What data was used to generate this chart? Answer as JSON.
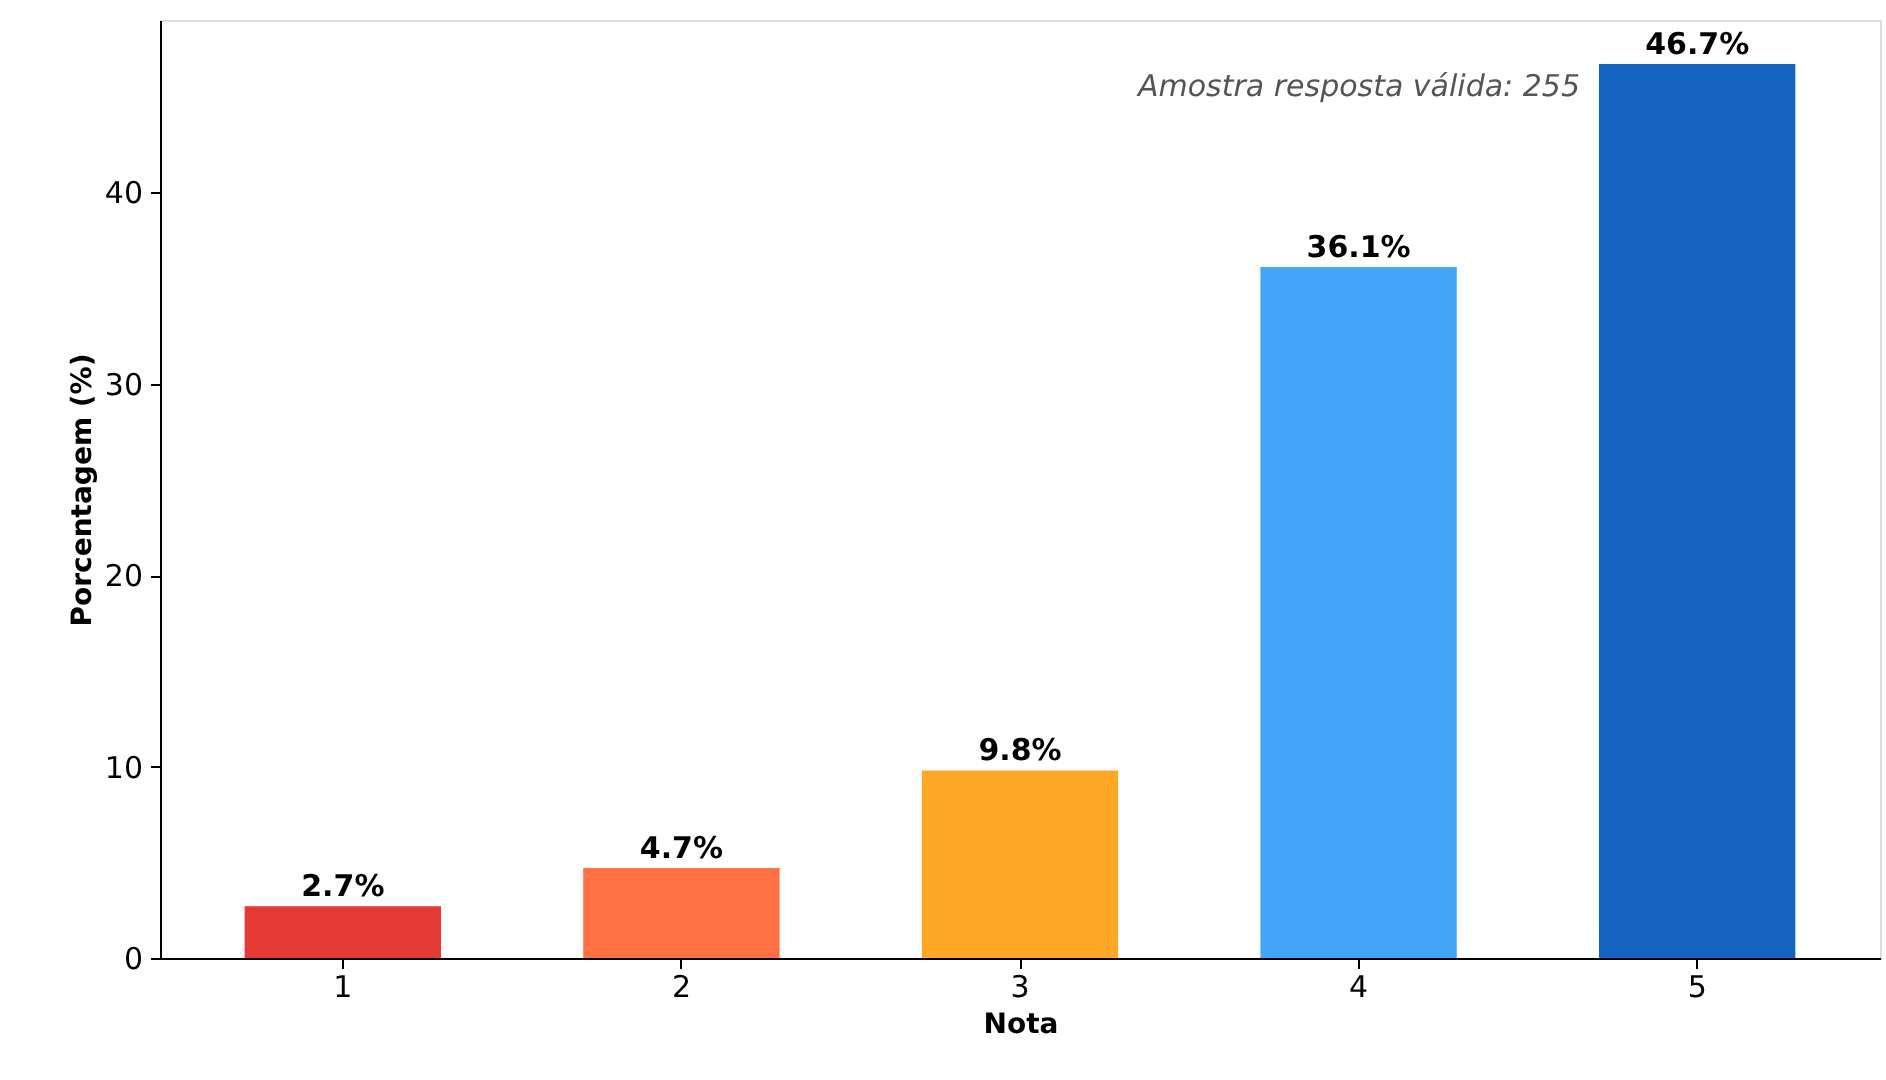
{
  "chart_data": {
    "type": "bar",
    "xlabel": "Nota",
    "ylabel": "Porcentagem (%)",
    "categories": [
      "1",
      "2",
      "3",
      "4",
      "5"
    ],
    "values": [
      2.7,
      4.7,
      9.8,
      36.1,
      46.7
    ],
    "colors": [
      "#e53935",
      "#ff7043",
      "#ffa726",
      "#42a5f5",
      "#1565c0"
    ],
    "value_labels": [
      "2.7%",
      "4.7%",
      "9.8%",
      "36.1%",
      "46.7%"
    ],
    "ylim": [
      0,
      49
    ],
    "yticks": [
      0,
      10,
      20,
      30,
      40
    ],
    "grid": false,
    "annotations": [
      "Amostra resposta válida: 255"
    ]
  }
}
